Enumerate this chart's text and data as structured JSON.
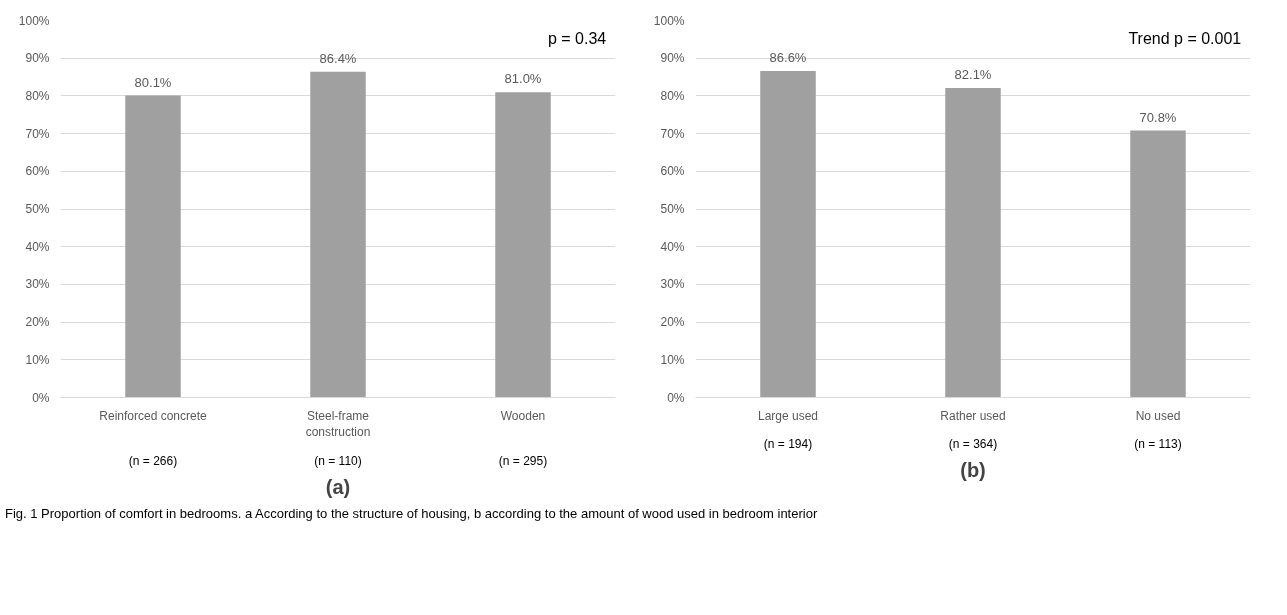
{
  "chart_data": [
    {
      "type": "bar",
      "xlabel": "(a)",
      "categories": [
        "Reinforced concrete",
        "Steel-frame construction",
        "Wooden"
      ],
      "values": [
        80.1,
        86.4,
        81.0
      ],
      "value_labels": [
        "80.1%",
        "86.4%",
        "81.0%"
      ],
      "color": "#a0a0a0",
      "ylim": [
        0,
        100
      ],
      "yticks": [
        {
          "value": 0,
          "label": "0%"
        },
        {
          "value": 10,
          "label": "10%"
        },
        {
          "value": 20,
          "label": "20%"
        },
        {
          "value": 30,
          "label": "30%"
        },
        {
          "value": 40,
          "label": "40%"
        },
        {
          "value": 50,
          "label": "50%"
        },
        {
          "value": 60,
          "label": "60%"
        },
        {
          "value": 70,
          "label": "70%"
        },
        {
          "value": 80,
          "label": "80%"
        },
        {
          "value": 90,
          "label": "90%"
        },
        {
          "value": 100,
          "label": "100%"
        }
      ],
      "grid": "y",
      "annotations": [
        "p = 0.34",
        "(n = 266)",
        "(n = 110)",
        "(n = 295)"
      ]
    },
    {
      "type": "bar",
      "xlabel": "(b)",
      "categories": [
        "Large used",
        "Rather used",
        "No used"
      ],
      "values": [
        86.6,
        82.1,
        70.8
      ],
      "value_labels": [
        "86.6%",
        "82.1%",
        "70.8%"
      ],
      "color": "#a0a0a0",
      "ylim": [
        0,
        100
      ],
      "yticks": [
        {
          "value": 0,
          "label": "0%"
        },
        {
          "value": 10,
          "label": "10%"
        },
        {
          "value": 20,
          "label": "20%"
        },
        {
          "value": 30,
          "label": "30%"
        },
        {
          "value": 40,
          "label": "40%"
        },
        {
          "value": 50,
          "label": "50%"
        },
        {
          "value": 60,
          "label": "60%"
        },
        {
          "value": 70,
          "label": "70%"
        },
        {
          "value": 80,
          "label": "80%"
        },
        {
          "value": 90,
          "label": "90%"
        },
        {
          "value": 100,
          "label": "100%"
        }
      ],
      "grid": "y",
      "annotations": [
        "Trend p = 0.001",
        "(n = 194)",
        "(n = 364)",
        "(n = 113)",
        "Fig. 1 Proportion of comfort in bedrooms. a According to the structure of housing, b according to the amount of wood used in bedroom interior"
      ]
    }
  ]
}
